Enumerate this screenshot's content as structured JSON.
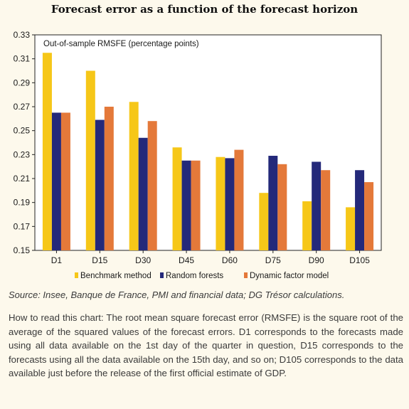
{
  "title": "Forecast error as a function of the forecast horizon",
  "colors": {
    "benchmark": "#f6c718",
    "random_forests": "#24297a",
    "dynamic_factor": "#e4793a"
  },
  "chart_data": {
    "type": "bar",
    "ylabel_inside": "Out-of-sample RMSFE (percentage points)",
    "categories": [
      "D1",
      "D15",
      "D30",
      "D45",
      "D60",
      "D75",
      "D90",
      "D105"
    ],
    "series": [
      {
        "name": "Benchmark method",
        "values": [
          0.315,
          0.3,
          0.274,
          0.236,
          0.228,
          0.198,
          0.191,
          0.186
        ]
      },
      {
        "name": "Random forests",
        "values": [
          0.265,
          0.259,
          0.244,
          0.225,
          0.227,
          0.229,
          0.224,
          0.217
        ]
      },
      {
        "name": "Dynamic factor model",
        "values": [
          0.265,
          0.27,
          0.258,
          0.225,
          0.234,
          0.222,
          0.217,
          0.207
        ]
      }
    ],
    "ylim": [
      0.15,
      0.33
    ],
    "yticks": [
      "0.15",
      "0.17",
      "0.19",
      "0.21",
      "0.23",
      "0.25",
      "0.27",
      "0.29",
      "0.31",
      "0.33"
    ],
    "legend_position": "bottom"
  },
  "source_note": "Source: Insee, Banque de France, PMI and financial data; DG Trésor calculations.",
  "how_to_read": "How to read this chart: The root mean square forecast error (RMSFE) is the square root of the average of the squared values of the forecast errors. D1 corresponds to the forecasts made using all data available on the 1st day of the quarter in question, D15 corresponds to the forecasts using all the data available on the 15th day, and so on; D105 corresponds to the data available just before the release of the first official estimate of GDP."
}
